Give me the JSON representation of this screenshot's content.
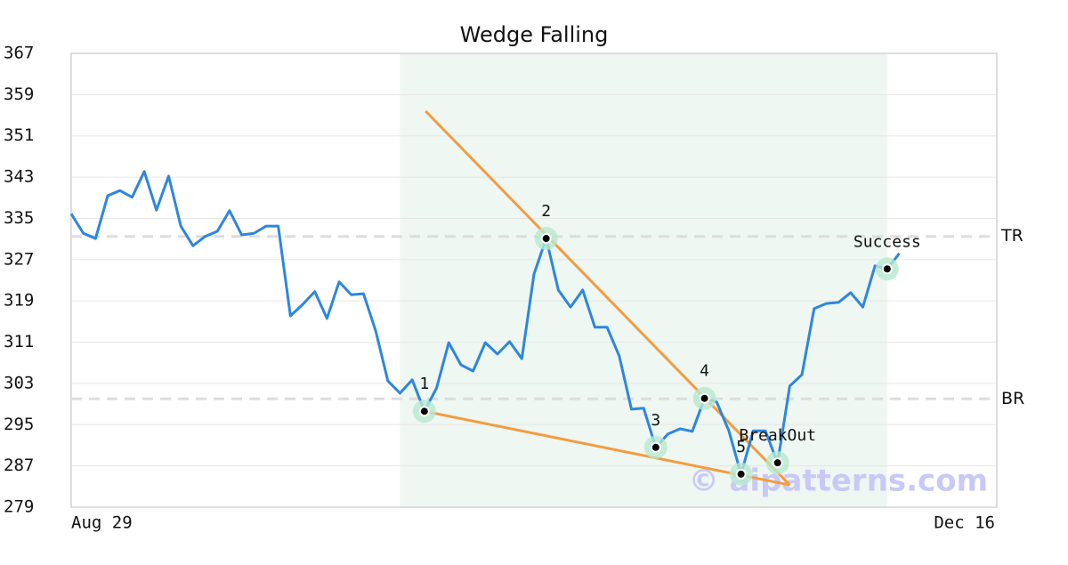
{
  "chart_data": {
    "type": "line",
    "title": "Wedge Falling",
    "x": [
      0,
      1,
      2,
      3,
      4,
      5,
      6,
      7,
      8,
      9,
      10,
      11,
      12,
      13,
      14,
      15,
      16,
      17,
      18,
      19,
      20,
      21,
      22,
      23,
      24,
      25,
      26,
      27,
      28,
      29,
      30,
      31,
      32,
      33,
      34,
      35,
      36,
      37,
      38,
      39,
      40,
      41,
      42,
      43,
      44,
      45,
      46,
      47,
      48,
      49,
      50,
      51,
      52,
      53,
      54,
      55,
      56,
      57,
      58,
      59,
      60,
      61,
      62,
      63,
      64,
      65,
      66,
      67,
      68
    ],
    "series": [
      {
        "color": "#2e86de",
        "values": [
          335.9,
          332.1,
          331.1,
          339.4,
          340.4,
          339.1,
          344.1,
          336.6,
          343.2,
          333.5,
          329.7,
          331.5,
          332.5,
          336.5,
          331.8,
          332.1,
          333.5,
          333.5,
          316.1,
          318.3,
          320.8,
          315.6,
          322.7,
          320.2,
          320.4,
          313.2,
          303.5,
          301.1,
          303.7,
          297.6,
          302.1,
          310.9,
          306.6,
          305.4,
          310.9,
          308.7,
          311.1,
          307.8,
          324.2,
          331.1,
          321.1,
          317.8,
          321.1,
          313.9,
          313.9,
          308.3,
          298.0,
          298.2,
          290.6,
          293.2,
          294.2,
          293.7,
          300.1,
          299.4,
          293.8,
          285.4,
          293.8,
          293.8,
          287.6,
          302.5,
          304.7,
          317.5,
          318.5,
          318.7,
          320.6,
          317.8,
          325.8,
          325.2,
          328.2
        ]
      }
    ],
    "xlim": [
      0,
      76
    ],
    "xticks": [
      {
        "value": 0,
        "label": "Aug 29"
      },
      {
        "value": 76,
        "label": "Dec 16"
      }
    ],
    "ylim": [
      279,
      367
    ],
    "yticks": [
      279,
      287,
      295,
      303,
      311,
      319,
      327,
      335,
      343,
      351,
      359,
      367
    ],
    "grid": true,
    "shade": [
      27,
      67
    ],
    "levels": [
      {
        "label": "TR",
        "value": 331.5
      },
      {
        "label": "BR",
        "value": 300
      }
    ],
    "trendlines": [
      {
        "color": "#f39c40",
        "x": [
          29.1,
          59
        ],
        "values": [
          355.8,
          283.3
        ]
      },
      {
        "color": "#f39c40",
        "x": [
          29,
          59
        ],
        "values": [
          297.6,
          283.3
        ]
      }
    ],
    "points": [
      {
        "label": "1",
        "x": 29,
        "value": 297.6
      },
      {
        "label": "2",
        "x": 39,
        "value": 331.1
      },
      {
        "label": "3",
        "x": 48,
        "value": 290.6
      },
      {
        "label": "4",
        "x": 52,
        "value": 300.1
      },
      {
        "label": "5",
        "x": 55,
        "value": 285.4
      },
      {
        "label": "BreakOut",
        "x": 58,
        "value": 287.6
      },
      {
        "label": "Success",
        "x": 67,
        "value": 325.2
      }
    ],
    "watermark": "© aipatterns.com"
  }
}
